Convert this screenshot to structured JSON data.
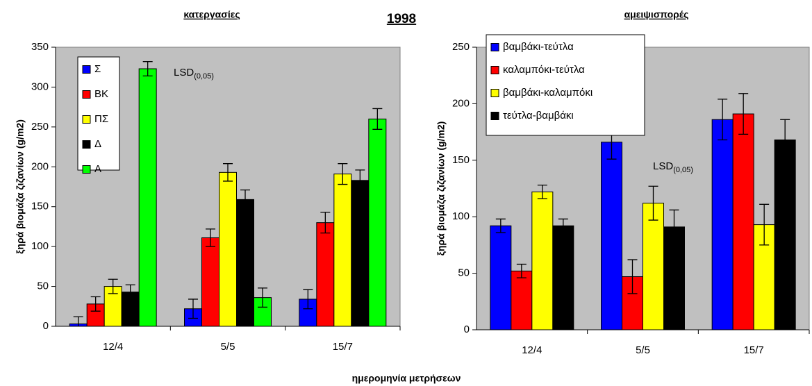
{
  "title": "1998",
  "x_label": "ημερομηνία μετρήσεων",
  "chart_data": [
    {
      "type": "bar",
      "title": "κατεργασίες",
      "y_label": "ξηρά βιομάζα ζιζανίων (g/m2)",
      "annotation": {
        "text": "LSD",
        "subscript": "(0,05)"
      },
      "categories": [
        "12/4",
        "5/5",
        "15/7"
      ],
      "ylim": [
        0,
        350
      ],
      "yticks": [
        0,
        50,
        100,
        150,
        200,
        250,
        300,
        350
      ],
      "plot_background": "#c0c0c0",
      "legend": "upper left",
      "series": [
        {
          "name": "Σ",
          "color": "#0000ff",
          "values": [
            3,
            22,
            34
          ],
          "errors": [
            9,
            12,
            12
          ]
        },
        {
          "name": "ΒΚ",
          "color": "#ff0000",
          "values": [
            28,
            111,
            130
          ],
          "errors": [
            9,
            11,
            13
          ]
        },
        {
          "name": "ΠΣ",
          "color": "#ffff00",
          "values": [
            50,
            193,
            191
          ],
          "errors": [
            9,
            11,
            13
          ]
        },
        {
          "name": "Δ",
          "color": "#000000",
          "values": [
            43,
            159,
            183
          ],
          "errors": [
            9,
            12,
            13
          ]
        },
        {
          "name": "Α",
          "color": "#00ff00",
          "values": [
            323,
            36,
            260
          ],
          "errors": [
            9,
            12,
            13
          ]
        }
      ]
    },
    {
      "type": "bar",
      "title": "αμειψισπορές",
      "y_label": "ξηρά βιομάζα ζιζανίων (g/m2)",
      "annotation": {
        "text": "LSD",
        "subscript": "(0,05)"
      },
      "categories": [
        "12/4",
        "5/5",
        "15/7"
      ],
      "ylim": [
        0,
        250
      ],
      "yticks": [
        0,
        50,
        100,
        150,
        200,
        250
      ],
      "plot_background": "#c0c0c0",
      "legend": "upper left",
      "series": [
        {
          "name": "βαμβάκι-τεύτλα",
          "color": "#0000ff",
          "values": [
            92,
            166,
            186
          ],
          "errors": [
            6,
            15,
            18
          ]
        },
        {
          "name": "καλαμπόκι-τεύτλα",
          "color": "#ff0000",
          "values": [
            52,
            47,
            191
          ],
          "errors": [
            6,
            15,
            18
          ]
        },
        {
          "name": "βαμβάκι-καλαμπόκι",
          "color": "#ffff00",
          "values": [
            122,
            112,
            93
          ],
          "errors": [
            6,
            15,
            18
          ]
        },
        {
          "name": "τεύτλα-βαμβάκι",
          "color": "#000000",
          "values": [
            92,
            91,
            168
          ],
          "errors": [
            6,
            15,
            18
          ]
        }
      ]
    }
  ]
}
